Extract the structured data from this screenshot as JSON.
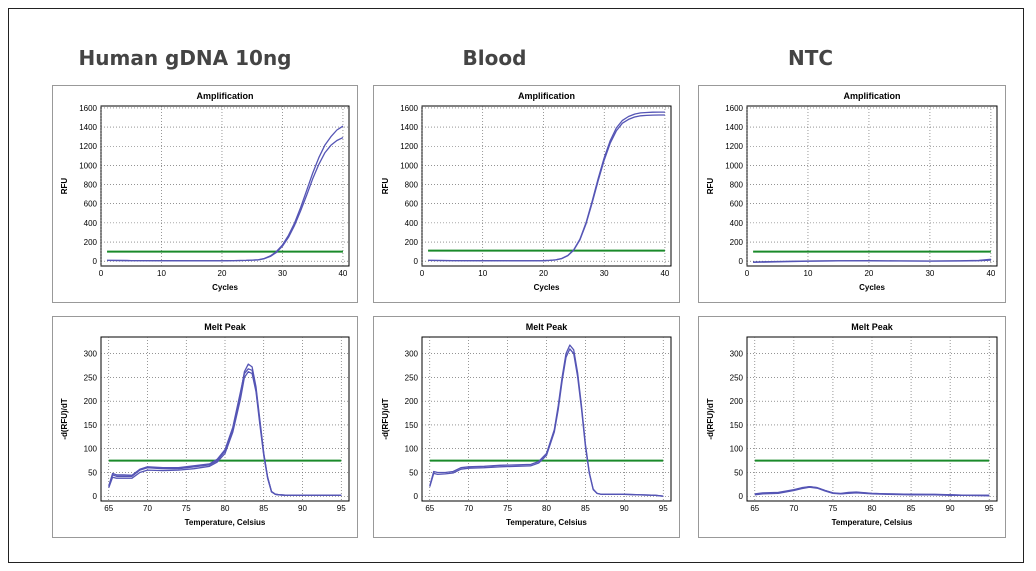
{
  "columns": [
    "Human gDNA 10ng",
    "Blood",
    "NTC"
  ],
  "colors": {
    "curve": "#5555b5",
    "threshold": "#1a8a2a"
  },
  "chart_data": [
    {
      "type": "line",
      "sample": "Human gDNA 10ng",
      "title": "Amplification",
      "xlabel": "Cycles",
      "ylabel": "RFU",
      "xlim": [
        0,
        41
      ],
      "ylim": [
        -50,
        1620
      ],
      "xticks": [
        0,
        10,
        20,
        30,
        40
      ],
      "yticks": [
        0,
        200,
        400,
        600,
        800,
        1000,
        1200,
        1400,
        1600
      ],
      "grid": true,
      "threshold": 100,
      "x": [
        1,
        5,
        10,
        15,
        20,
        22,
        24,
        26,
        27,
        28,
        29,
        30,
        31,
        32,
        33,
        34,
        35,
        36,
        37,
        38,
        39,
        40
      ],
      "series": [
        {
          "values": [
            8,
            6,
            5,
            4,
            4,
            6,
            8,
            15,
            28,
            55,
            100,
            170,
            270,
            400,
            560,
            740,
            920,
            1080,
            1210,
            1300,
            1370,
            1410
          ]
        },
        {
          "values": [
            8,
            6,
            5,
            4,
            4,
            6,
            8,
            14,
            26,
            50,
            92,
            158,
            250,
            375,
            525,
            690,
            860,
            1010,
            1130,
            1210,
            1260,
            1290
          ]
        }
      ]
    },
    {
      "type": "line",
      "sample": "Blood",
      "title": "Amplification",
      "xlabel": "Cycles",
      "ylabel": "RFU",
      "xlim": [
        0,
        41
      ],
      "ylim": [
        -50,
        1620
      ],
      "xticks": [
        0,
        10,
        20,
        30,
        40
      ],
      "yticks": [
        0,
        200,
        400,
        600,
        800,
        1000,
        1200,
        1400,
        1600
      ],
      "grid": true,
      "threshold": 110,
      "x": [
        1,
        5,
        10,
        15,
        20,
        21,
        22,
        23,
        24,
        25,
        26,
        27,
        28,
        29,
        30,
        31,
        32,
        33,
        34,
        35,
        36,
        37,
        38,
        39,
        40
      ],
      "series": [
        {
          "values": [
            8,
            6,
            5,
            4,
            5,
            8,
            14,
            28,
            60,
            120,
            230,
            400,
            620,
            860,
            1080,
            1260,
            1390,
            1470,
            1510,
            1535,
            1548,
            1552,
            1555,
            1556,
            1556
          ]
        },
        {
          "values": [
            8,
            6,
            5,
            4,
            5,
            8,
            14,
            27,
            58,
            116,
            222,
            388,
            602,
            838,
            1055,
            1235,
            1360,
            1440,
            1480,
            1505,
            1518,
            1522,
            1525,
            1526,
            1526
          ]
        }
      ]
    },
    {
      "type": "line",
      "sample": "NTC",
      "title": "Amplification",
      "xlabel": "Cycles",
      "ylabel": "RFU",
      "xlim": [
        0,
        41
      ],
      "ylim": [
        -50,
        1620
      ],
      "xticks": [
        0,
        10,
        20,
        30,
        40
      ],
      "yticks": [
        0,
        200,
        400,
        600,
        800,
        1000,
        1200,
        1400,
        1600
      ],
      "grid": true,
      "threshold": 100,
      "x": [
        1,
        5,
        10,
        15,
        20,
        25,
        30,
        35,
        38,
        40
      ],
      "series": [
        {
          "values": [
            -8,
            -3,
            2,
            4,
            5,
            3,
            2,
            4,
            8,
            20
          ]
        },
        {
          "values": [
            -12,
            -6,
            0,
            3,
            3,
            2,
            1,
            2,
            5,
            12
          ]
        }
      ]
    },
    {
      "type": "line",
      "sample": "Human gDNA 10ng",
      "title": "Melt Peak",
      "xlabel": "Temperature, Celsius",
      "ylabel": "-d(RFU)/dT",
      "xlim": [
        64,
        96
      ],
      "ylim": [
        -10,
        335
      ],
      "xticks": [
        65,
        70,
        75,
        80,
        85,
        90,
        95
      ],
      "yticks": [
        0,
        50,
        100,
        150,
        200,
        250,
        300
      ],
      "grid": true,
      "threshold": 75,
      "x": [
        65,
        65.5,
        66,
        67,
        68,
        69,
        70,
        72,
        74,
        76,
        78,
        79,
        80,
        81,
        82,
        82.5,
        83,
        83.5,
        84,
        84.5,
        85,
        85.5,
        86,
        86.5,
        87,
        88,
        90,
        92,
        95
      ],
      "series": [
        {
          "values": [
            20,
            45,
            42,
            42,
            42,
            55,
            60,
            58,
            58,
            62,
            66,
            75,
            95,
            140,
            215,
            262,
            278,
            272,
            230,
            160,
            90,
            40,
            10,
            4,
            3,
            2,
            2,
            2,
            2
          ]
        },
        {
          "values": [
            18,
            40,
            38,
            38,
            38,
            50,
            55,
            54,
            55,
            58,
            63,
            72,
            90,
            135,
            205,
            250,
            262,
            258,
            220,
            150,
            85,
            38,
            9,
            4,
            3,
            2,
            2,
            2,
            2
          ]
        },
        {
          "values": [
            22,
            48,
            45,
            45,
            44,
            57,
            62,
            60,
            60,
            64,
            68,
            78,
            98,
            145,
            220,
            258,
            268,
            265,
            225,
            155,
            88,
            40,
            10,
            4,
            3,
            2,
            2,
            2,
            2
          ]
        }
      ]
    },
    {
      "type": "line",
      "sample": "Blood",
      "title": "Melt Peak",
      "xlabel": "Temperature, Celsius",
      "ylabel": "-d(RFU)/dT",
      "xlim": [
        64,
        96
      ],
      "ylim": [
        -10,
        335
      ],
      "xticks": [
        65,
        70,
        75,
        80,
        85,
        90,
        95
      ],
      "yticks": [
        0,
        50,
        100,
        150,
        200,
        250,
        300
      ],
      "grid": true,
      "threshold": 75,
      "x": [
        65,
        65.5,
        66,
        67,
        68,
        69,
        70,
        72,
        74,
        76,
        78,
        79,
        80,
        81,
        81.5,
        82,
        82.5,
        83,
        83.5,
        84,
        84.5,
        85,
        85.5,
        86,
        86.5,
        87,
        88,
        90,
        92,
        94,
        95
      ],
      "series": [
        {
          "values": [
            22,
            52,
            50,
            50,
            52,
            60,
            62,
            63,
            65,
            66,
            67,
            73,
            90,
            140,
            190,
            250,
            300,
            318,
            308,
            260,
            190,
            110,
            50,
            15,
            6,
            4,
            4,
            4,
            3,
            2,
            0
          ]
        },
        {
          "values": [
            20,
            48,
            46,
            47,
            49,
            57,
            59,
            60,
            62,
            63,
            64,
            70,
            86,
            135,
            182,
            242,
            292,
            310,
            300,
            252,
            184,
            105,
            48,
            14,
            6,
            4,
            4,
            4,
            3,
            2,
            0
          ]
        }
      ]
    },
    {
      "type": "line",
      "sample": "NTC",
      "title": "Melt Peak",
      "xlabel": "Temperature, Celsius",
      "ylabel": "-d(RFU)/dT",
      "xlim": [
        64,
        96
      ],
      "ylim": [
        -10,
        335
      ],
      "xticks": [
        65,
        70,
        75,
        80,
        85,
        90,
        95
      ],
      "yticks": [
        0,
        50,
        100,
        150,
        200,
        250,
        300
      ],
      "grid": true,
      "threshold": 75,
      "x": [
        65,
        66,
        68,
        70,
        71,
        72,
        73,
        74,
        75,
        76,
        77,
        78,
        80,
        82,
        85,
        88,
        90,
        92,
        95
      ],
      "series": [
        {
          "values": [
            5,
            7,
            8,
            14,
            18,
            20,
            18,
            12,
            7,
            6,
            8,
            9,
            6,
            5,
            4,
            4,
            3,
            2,
            2
          ]
        },
        {
          "values": [
            3,
            5,
            6,
            12,
            16,
            19,
            17,
            11,
            6,
            5,
            6,
            7,
            5,
            4,
            3,
            3,
            2,
            2,
            1
          ]
        },
        {
          "values": [
            4,
            6,
            7,
            13,
            17,
            20,
            18,
            12,
            7,
            5,
            7,
            8,
            6,
            5,
            4,
            3,
            3,
            2,
            2
          ]
        }
      ]
    }
  ]
}
